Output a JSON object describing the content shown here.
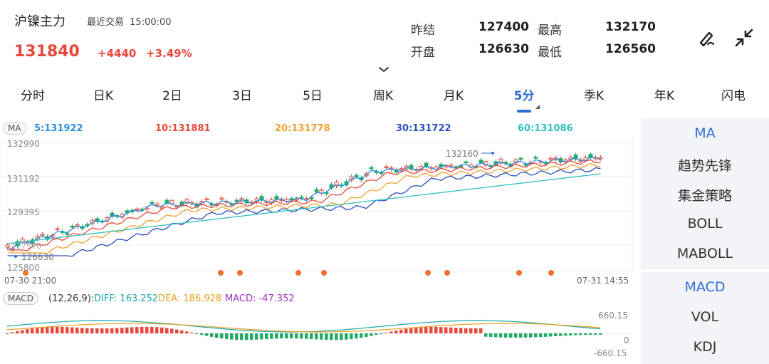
{
  "header": {
    "title": "沪镍主力",
    "last_trade_label": "最近交易",
    "last_trade_time": "15:00:00",
    "price": "131840",
    "change": "+4440",
    "change_pct": "+3.49%"
  },
  "stats": {
    "prev_settle_label": "昨结",
    "prev_settle": "127400",
    "high_label": "最高",
    "high": "132170",
    "open_label": "开盘",
    "open": "126630",
    "low_label": "最低",
    "low": "126560"
  },
  "tabs": [
    {
      "label": "分时"
    },
    {
      "label": "日K"
    },
    {
      "label": "2日"
    },
    {
      "label": "3日"
    },
    {
      "label": "5日"
    },
    {
      "label": "周K"
    },
    {
      "label": "月K"
    },
    {
      "label": "5分"
    },
    {
      "label": "季K"
    },
    {
      "label": "年K"
    },
    {
      "label": "闪电"
    }
  ],
  "active_tab": "5分",
  "ma_indicator": {
    "tag": "MA",
    "values": [
      {
        "label": "5:131922",
        "color": "#2f8fe0"
      },
      {
        "label": "10:131881",
        "color": "#e8483c"
      },
      {
        "label": "20:131778",
        "color": "#f0a030"
      },
      {
        "label": "30:131722",
        "color": "#2a4fc0"
      },
      {
        "label": "60:131086",
        "color": "#2fc0c0"
      }
    ]
  },
  "price_axis": {
    "labels": [
      "132990",
      "131192",
      "129395",
      "125800"
    ],
    "high_marker": "132160",
    "low_marker": "126630",
    "low_marker_2": "127576"
  },
  "time_axis": {
    "start": "07-30 21:00",
    "end": "07-31 14:55"
  },
  "macd_indicator": {
    "tag": "MACD",
    "params": "(12,26,9):",
    "diff": "DIFF: 163.252",
    "dea": "DEA: 186.928",
    "macd": "MACD: -47.352",
    "axis_top": "660.15",
    "axis_zero": "0",
    "axis_bottom": "-660.15"
  },
  "side_menu": {
    "top_items": [
      {
        "label": "MA",
        "active": true
      },
      {
        "label": "趋势先锋",
        "active": false
      },
      {
        "label": "集金策略",
        "active": false
      },
      {
        "label": "BOLL",
        "active": false
      },
      {
        "label": "MABOLL",
        "active": false
      }
    ],
    "bottom_items": [
      {
        "label": "MACD",
        "active": true
      },
      {
        "label": "VOL",
        "active": false
      },
      {
        "label": "KDJ",
        "active": false
      }
    ]
  },
  "colors": {
    "up": "#e8483c",
    "down": "#22aa66",
    "accent": "#2f6bd5"
  },
  "icons": [
    "edit-pencil-icon",
    "collapse-arrows-icon",
    "chevron-down-icon",
    "event-dot-icon"
  ]
}
